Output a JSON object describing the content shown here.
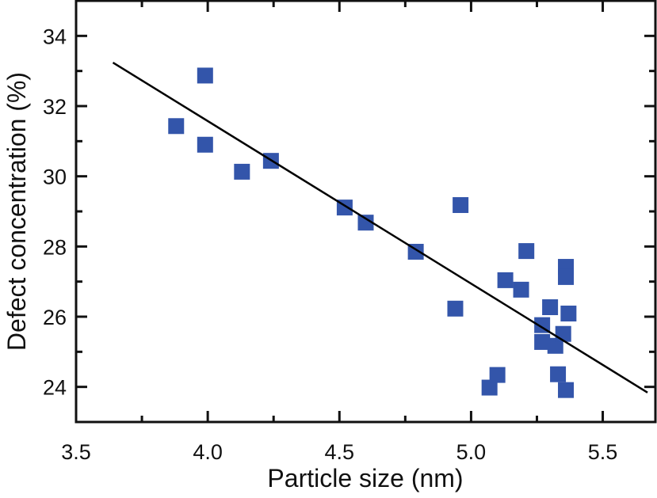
{
  "chart_data": {
    "type": "scatter",
    "title": "",
    "xlabel": "Particle size (nm)",
    "ylabel": "Defect concentration (%)",
    "xlim": [
      3.5,
      5.7
    ],
    "ylim": [
      23,
      35
    ],
    "xticks": [
      "3.5",
      "4.0",
      "4.5",
      "5.0",
      "5.5"
    ],
    "yticks": [
      "24",
      "26",
      "28",
      "30",
      "32",
      "34"
    ],
    "grid": false,
    "marker_color": "#3355aa",
    "line_color": "#000000",
    "points": [
      {
        "x": 3.88,
        "y": 31.43
      },
      {
        "x": 3.99,
        "y": 32.87
      },
      {
        "x": 3.99,
        "y": 30.9
      },
      {
        "x": 4.13,
        "y": 30.13
      },
      {
        "x": 4.24,
        "y": 30.44
      },
      {
        "x": 4.52,
        "y": 29.11
      },
      {
        "x": 4.6,
        "y": 28.68
      },
      {
        "x": 4.79,
        "y": 27.85
      },
      {
        "x": 4.94,
        "y": 26.23
      },
      {
        "x": 4.96,
        "y": 29.18
      },
      {
        "x": 5.07,
        "y": 23.98
      },
      {
        "x": 5.1,
        "y": 24.34
      },
      {
        "x": 5.13,
        "y": 27.04
      },
      {
        "x": 5.19,
        "y": 26.77
      },
      {
        "x": 5.21,
        "y": 27.87
      },
      {
        "x": 5.27,
        "y": 25.76
      },
      {
        "x": 5.27,
        "y": 25.28
      },
      {
        "x": 5.3,
        "y": 26.27
      },
      {
        "x": 5.32,
        "y": 25.17
      },
      {
        "x": 5.33,
        "y": 24.36
      },
      {
        "x": 5.35,
        "y": 25.51
      },
      {
        "x": 5.36,
        "y": 23.91
      },
      {
        "x": 5.36,
        "y": 27.42
      },
      {
        "x": 5.36,
        "y": 27.13
      },
      {
        "x": 5.37,
        "y": 26.09
      }
    ],
    "fit_line": {
      "x": [
        3.64,
        5.67
      ],
      "y": [
        33.24,
        23.84
      ]
    }
  }
}
